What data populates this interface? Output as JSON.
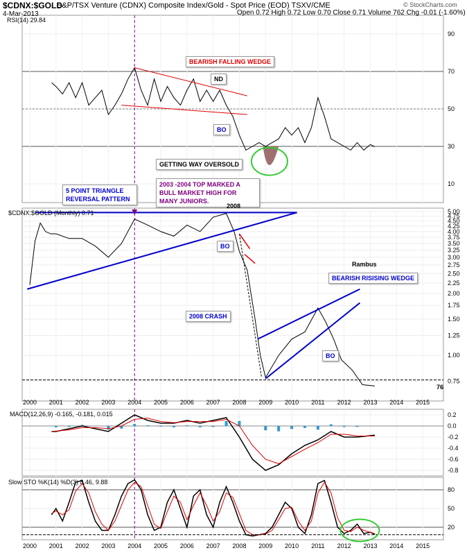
{
  "header": {
    "title": "$CDNX:$GOLD",
    "subtitle": "S&P/TSX Venture (CDNX) Composite Index/Gold - Spot Price (EOD)  TSXV/CME",
    "date": "4-Mar-2013",
    "ohlc": "Open 0.72  High 0.72  Low 0.70  Close 0.71  Volume 762  Chg -0.01 (-1.60%)",
    "watermark": "© StockCharts.com"
  },
  "colors": {
    "price": "#000000",
    "trend": "#0000cc",
    "wedge": "#e00000",
    "ma": "#e00000",
    "osc_green": "#33cc33",
    "hist": "#3399cc",
    "fill": "#a07070",
    "marker": "#800080"
  },
  "chart_data": [
    {
      "type": "line",
      "title": "RSI(14) 29.84",
      "ylim": [
        0,
        100
      ],
      "yticks": [
        10,
        30,
        50,
        70,
        90
      ],
      "reference_lines": [
        30,
        50,
        70
      ],
      "series": [
        {
          "name": "RSI(14)",
          "x": [
            2000.83,
            2001.0,
            2001.25,
            2001.5,
            2001.75,
            2002.0,
            2002.25,
            2002.5,
            2002.75,
            2003.0,
            2003.25,
            2003.5,
            2003.75,
            2004.0,
            2004.25,
            2004.5,
            2004.75,
            2005.0,
            2005.25,
            2005.5,
            2005.75,
            2006.0,
            2006.25,
            2006.5,
            2006.75,
            2007.0,
            2007.25,
            2007.5,
            2007.75,
            2008.0,
            2008.25,
            2008.5,
            2008.75,
            2009.0,
            2009.25,
            2009.5,
            2009.75,
            2010.0,
            2010.25,
            2010.5,
            2010.75,
            2011.0,
            2011.25,
            2011.5,
            2011.75,
            2012.0,
            2012.25,
            2012.5,
            2012.75,
            2013.0,
            2013.17
          ],
          "y": [
            64,
            62,
            58,
            64,
            56,
            64,
            52,
            56,
            60,
            47,
            52,
            58,
            66,
            72,
            60,
            52,
            66,
            54,
            62,
            56,
            52,
            60,
            66,
            54,
            60,
            54,
            60,
            52,
            46,
            36,
            28,
            30,
            32,
            30,
            32,
            34,
            40,
            36,
            40,
            32,
            40,
            56,
            46,
            34,
            32,
            30,
            28,
            32,
            28,
            31,
            29.84
          ]
        }
      ]
    },
    {
      "type": "line",
      "title": "$CDNX:$GOLD (Monthly) 0.71",
      "ylim": [
        0.6,
        5.0
      ],
      "yticks": [
        0.75,
        1.0,
        1.25,
        1.5,
        1.75,
        2.0,
        2.25,
        2.5,
        2.75,
        3.0,
        3.25,
        3.5,
        3.75,
        4.0,
        4.25,
        4.5,
        4.75,
        5.0
      ],
      "series": [
        {
          "name": "$CDNX:$GOLD (Monthly)",
          "x": [
            2000.0,
            2000.2,
            2000.4,
            2000.6,
            2000.8,
            2001.0,
            2001.5,
            2002.0,
            2002.5,
            2003.0,
            2003.5,
            2004.0,
            2004.5,
            2005.0,
            2005.5,
            2006.0,
            2006.5,
            2007.0,
            2007.5,
            2007.8,
            2008.0,
            2008.3,
            2008.6,
            2008.8,
            2009.0,
            2009.5,
            2010.0,
            2010.5,
            2011.0,
            2011.3,
            2011.6,
            2011.9,
            2012.3,
            2012.7,
            2013.17
          ],
          "y": [
            2.2,
            3.6,
            4.4,
            4.0,
            3.9,
            3.9,
            3.7,
            3.7,
            3.4,
            3.0,
            3.5,
            4.6,
            4.3,
            4.0,
            3.8,
            4.3,
            4.0,
            4.7,
            4.9,
            4.0,
            3.2,
            2.6,
            1.5,
            1.0,
            0.78,
            1.0,
            1.2,
            1.3,
            1.7,
            1.45,
            1.2,
            0.95,
            0.85,
            0.72,
            0.71
          ]
        }
      ],
      "annotations": [
        "2008",
        "Rambus",
        "76"
      ]
    },
    {
      "type": "line",
      "title": "MACD(12,26,9) -0.165, -0.181, 0.015",
      "ylim": [
        -0.9,
        0.3
      ],
      "yticks": [
        -0.8,
        -0.6,
        -0.4,
        -0.2,
        0.0,
        0.2
      ],
      "series": [
        {
          "name": "MACD",
          "x": [
            2000.83,
            2001.0,
            2001.5,
            2002.0,
            2002.5,
            2003.0,
            2003.5,
            2004.0,
            2004.5,
            2005.0,
            2005.5,
            2006.0,
            2006.5,
            2007.0,
            2007.5,
            2008.0,
            2008.5,
            2009.0,
            2009.5,
            2010.0,
            2010.5,
            2011.0,
            2011.5,
            2012.0,
            2012.5,
            2013.17
          ],
          "y": [
            -0.1,
            -0.1,
            -0.05,
            0.0,
            -0.05,
            -0.1,
            0.05,
            0.2,
            0.1,
            0.05,
            0.05,
            0.1,
            0.05,
            0.1,
            0.15,
            -0.2,
            -0.6,
            -0.8,
            -0.7,
            -0.5,
            -0.35,
            -0.25,
            -0.1,
            -0.2,
            -0.2,
            -0.165
          ]
        },
        {
          "name": "Signal",
          "x": [
            2000.83,
            2001.5,
            2002.0,
            2002.5,
            2003.0,
            2003.5,
            2004.0,
            2004.5,
            2005.0,
            2005.5,
            2006.0,
            2006.5,
            2007.0,
            2007.5,
            2008.0,
            2008.5,
            2009.0,
            2009.5,
            2010.0,
            2010.5,
            2011.0,
            2011.5,
            2012.0,
            2012.5,
            2013.17
          ],
          "y": [
            -0.1,
            -0.07,
            -0.03,
            -0.03,
            -0.05,
            0.0,
            0.12,
            0.14,
            0.08,
            0.06,
            0.08,
            0.08,
            0.08,
            0.12,
            0.0,
            -0.35,
            -0.6,
            -0.68,
            -0.55,
            -0.42,
            -0.3,
            -0.15,
            -0.15,
            -0.18,
            -0.181
          ]
        }
      ]
    },
    {
      "type": "line",
      "title": "Slow STO %K(14) %D(3) 8.46, 9.88",
      "ylim": [
        0,
        100
      ],
      "yticks": [
        20,
        50,
        80
      ],
      "reference_lines": [
        20,
        80
      ],
      "series": [
        {
          "name": "%K",
          "x": [
            2000.83,
            2001.0,
            2001.25,
            2001.5,
            2001.75,
            2002.0,
            2002.25,
            2002.5,
            2002.75,
            2003.0,
            2003.25,
            2003.5,
            2003.75,
            2004.0,
            2004.25,
            2004.5,
            2004.75,
            2005.0,
            2005.25,
            2005.5,
            2005.75,
            2006.0,
            2006.25,
            2006.5,
            2006.75,
            2007.0,
            2007.25,
            2007.5,
            2007.75,
            2008.0,
            2008.25,
            2008.5,
            2008.75,
            2009.0,
            2009.25,
            2009.5,
            2009.75,
            2010.0,
            2010.25,
            2010.5,
            2010.75,
            2011.0,
            2011.25,
            2011.5,
            2011.75,
            2012.0,
            2012.25,
            2012.5,
            2012.75,
            2013.0,
            2013.17
          ],
          "y": [
            40,
            50,
            30,
            60,
            92,
            95,
            60,
            30,
            15,
            15,
            40,
            70,
            90,
            96,
            80,
            40,
            15,
            20,
            60,
            80,
            50,
            20,
            70,
            80,
            40,
            20,
            60,
            85,
            60,
            30,
            8,
            6,
            8,
            10,
            20,
            40,
            60,
            50,
            20,
            10,
            40,
            90,
            95,
            60,
            20,
            10,
            15,
            25,
            10,
            12,
            8.46
          ]
        },
        {
          "name": "%D",
          "x": [
            2000.83,
            2001.0,
            2001.25,
            2001.5,
            2001.75,
            2002.0,
            2002.25,
            2002.5,
            2002.75,
            2003.0,
            2003.25,
            2003.5,
            2003.75,
            2004.0,
            2004.25,
            2004.5,
            2004.75,
            2005.0,
            2005.25,
            2005.5,
            2005.75,
            2006.0,
            2006.25,
            2006.5,
            2006.75,
            2007.0,
            2007.25,
            2007.5,
            2007.75,
            2008.0,
            2008.25,
            2008.5,
            2008.75,
            2009.0,
            2009.25,
            2009.5,
            2009.75,
            2010.0,
            2010.25,
            2010.5,
            2010.75,
            2011.0,
            2011.25,
            2011.5,
            2011.75,
            2012.0,
            2012.25,
            2012.5,
            2012.75,
            2013.0,
            2013.17
          ],
          "y": [
            42,
            46,
            40,
            48,
            78,
            90,
            75,
            45,
            25,
            15,
            30,
            55,
            80,
            92,
            85,
            55,
            25,
            18,
            45,
            70,
            60,
            32,
            55,
            75,
            55,
            30,
            45,
            75,
            68,
            42,
            15,
            8,
            8,
            9,
            15,
            32,
            50,
            52,
            30,
            15,
            30,
            75,
            92,
            75,
            35,
            15,
            13,
            20,
            15,
            12,
            9.88
          ]
        }
      ]
    }
  ],
  "x_axis": {
    "labels": [
      "2000",
      "2001",
      "2002",
      "2003",
      "2004",
      "2005",
      "2006",
      "2007",
      "2008",
      "2009",
      "2010",
      "2011",
      "2012",
      "2013",
      "2014",
      "2015"
    ]
  },
  "annotations": {
    "bearish_falling_wedge": "BEARISH FALLING WEDGE",
    "nd": "ND",
    "bo_rsi": "BO",
    "getting_oversold": "GETTING WAY OVERSOLD",
    "top_2003_2004": "2003 -2004 TOP MARKED A BULL MARKET HIGH FOR MANY JUNIORS.",
    "triangle": "5 POINT TRIANGLE REVERSAL PATTERN",
    "bo_price": "BO",
    "crash": "2008 CRASH",
    "rising_wedge": "BEARISH RISISING WEDGE",
    "bo_wedge": "BO",
    "year_2008": "2008",
    "rambus": "Rambus",
    "level_76": "76"
  }
}
